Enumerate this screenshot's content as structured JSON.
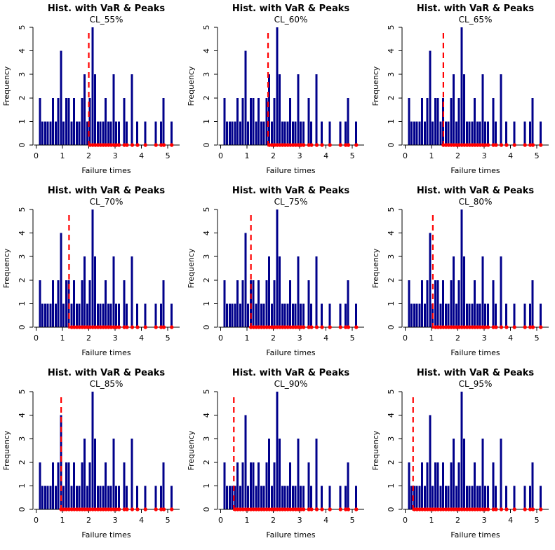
{
  "page": {
    "background": "#ffffff"
  },
  "chart_data": {
    "type": "bar",
    "subtype": "histogram-grid-3x3",
    "title": "Hist. with VaR & Peaks",
    "xlabel": "Failure times",
    "ylabel": "Frequency",
    "xlim": [
      0,
      5.3
    ],
    "ylim": [
      0,
      5
    ],
    "x_ticks": [
      0,
      1,
      2,
      3,
      4,
      5
    ],
    "y_ticks": [
      0,
      1,
      2,
      3,
      4,
      5
    ],
    "grid": "off",
    "bar_color": "#00008B",
    "var_line_color": "#FF0000",
    "var_line_style": "dashed",
    "peak_dot_color": "#FF0000",
    "peaks_y": 0,
    "bin_start": 0.0,
    "bin_width": 0.1,
    "bin_counts": [
      0,
      2,
      1,
      1,
      1,
      1,
      2,
      1,
      2,
      4,
      1,
      2,
      2,
      1,
      2,
      1,
      1,
      2,
      3,
      1,
      2,
      5,
      3,
      1,
      1,
      1,
      2,
      1,
      1,
      3,
      1,
      1,
      0,
      2,
      1,
      0,
      3,
      0,
      1,
      0,
      0,
      1,
      0,
      0,
      0,
      1,
      0,
      1,
      2,
      0,
      0,
      1
    ],
    "panels": [
      {
        "label": "CL_55%",
        "var": 2.0
      },
      {
        "label": "CL_60%",
        "var": 1.8
      },
      {
        "label": "CL_65%",
        "var": 1.45
      },
      {
        "label": "CL_70%",
        "var": 1.25
      },
      {
        "label": "CL_75%",
        "var": 1.15
      },
      {
        "label": "CL_80%",
        "var": 1.05
      },
      {
        "label": "CL_85%",
        "var": 0.95
      },
      {
        "label": "CL_90%",
        "var": 0.5
      },
      {
        "label": "CL_95%",
        "var": 0.3
      }
    ]
  }
}
